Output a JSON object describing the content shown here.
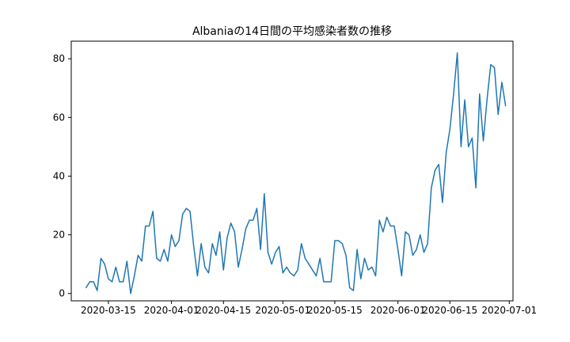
{
  "chart_data": {
    "type": "line",
    "title": "Albaniaの14日間の平均感染者数の推移",
    "xlabel": "",
    "ylabel": "",
    "x_start": "2020-03-09",
    "xlim": [
      "2020-03-05",
      "2020-07-02"
    ],
    "ylim": [
      -2.5,
      86
    ],
    "x_ticks": [
      "2020-03-15",
      "2020-04-01",
      "2020-04-15",
      "2020-05-01",
      "2020-05-15",
      "2020-06-01",
      "2020-06-15",
      "2020-07-01"
    ],
    "y_ticks": [
      0,
      20,
      40,
      60,
      80
    ],
    "grid": false,
    "series": [
      {
        "color": "#1f77b4",
        "values": [
          2,
          4,
          4,
          1,
          12,
          10,
          5,
          4,
          9,
          4,
          4,
          11,
          0,
          6,
          13,
          11,
          23,
          23,
          28,
          12,
          11,
          15,
          11,
          20,
          16,
          18,
          27,
          29,
          28,
          16,
          6,
          17,
          9,
          7,
          17,
          13,
          21,
          8,
          19,
          24,
          21,
          9,
          15,
          22,
          25,
          25,
          29,
          15,
          34,
          14,
          10,
          14,
          16,
          7,
          9,
          7,
          6,
          8,
          17,
          12,
          10,
          8,
          6,
          12,
          4,
          4,
          4,
          18,
          18,
          17,
          13,
          2,
          1,
          15,
          5,
          12,
          8,
          9,
          6,
          25,
          21,
          26,
          23,
          23,
          15,
          6,
          21,
          20,
          13,
          15,
          20,
          14,
          17,
          36,
          42,
          44,
          31,
          48,
          56,
          68,
          82,
          50,
          66,
          50,
          53,
          36,
          68,
          52,
          66,
          78,
          77,
          61,
          72,
          64
        ]
      }
    ]
  }
}
